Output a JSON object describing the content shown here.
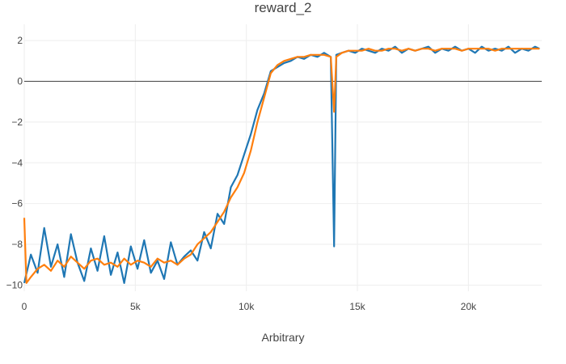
{
  "chart_data": {
    "type": "line",
    "title": "reward_2",
    "xlabel": "Arbitrary",
    "ylabel": "",
    "xlim": [
      0,
      23300
    ],
    "ylim": [
      -10.3,
      2.8
    ],
    "x_ticks": [
      {
        "value": 0,
        "label": "0"
      },
      {
        "value": 5000,
        "label": "5k"
      },
      {
        "value": 10000,
        "label": "10k"
      },
      {
        "value": 15000,
        "label": "15k"
      },
      {
        "value": 20000,
        "label": "20k"
      }
    ],
    "y_ticks": [
      {
        "value": 2,
        "label": "2"
      },
      {
        "value": 0,
        "label": "0"
      },
      {
        "value": -2,
        "label": "−2"
      },
      {
        "value": -4,
        "label": "−4"
      },
      {
        "value": -6,
        "label": "−6"
      },
      {
        "value": -8,
        "label": "−8"
      },
      {
        "value": -10,
        "label": "−10"
      }
    ],
    "grid": true,
    "zero_line": true,
    "colors": {
      "raw": "#1f77b4",
      "smoothed": "#ff7f0e",
      "grid": "#eeeeee",
      "zero": "#444444",
      "text": "#444444"
    },
    "series": [
      {
        "color": "#1f77b4",
        "x": [
          0,
          300,
          600,
          900,
          1200,
          1500,
          1800,
          2100,
          2400,
          2700,
          3000,
          3300,
          3600,
          3900,
          4200,
          4500,
          4800,
          5100,
          5400,
          5700,
          6000,
          6300,
          6600,
          6900,
          7200,
          7500,
          7800,
          8100,
          8400,
          8700,
          9000,
          9300,
          9600,
          9900,
          10200,
          10500,
          10800,
          11100,
          11400,
          11700,
          12000,
          12300,
          12600,
          12900,
          13200,
          13500,
          13800,
          13950,
          14050,
          14300,
          14600,
          14900,
          15200,
          15500,
          15800,
          16100,
          16400,
          16700,
          17000,
          17300,
          17600,
          17900,
          18200,
          18500,
          18800,
          19100,
          19400,
          19700,
          20000,
          20300,
          20600,
          20900,
          21200,
          21500,
          21800,
          22100,
          22400,
          22700,
          23000,
          23200
        ],
        "y": [
          -9.9,
          -8.5,
          -9.4,
          -7.2,
          -9.1,
          -8.0,
          -9.6,
          -7.5,
          -8.9,
          -9.8,
          -8.2,
          -9.3,
          -7.6,
          -9.5,
          -8.4,
          -9.9,
          -8.1,
          -9.2,
          -7.8,
          -9.4,
          -8.8,
          -9.7,
          -7.9,
          -9.0,
          -8.6,
          -8.3,
          -8.8,
          -7.4,
          -8.2,
          -6.5,
          -7.0,
          -5.2,
          -4.6,
          -3.6,
          -2.6,
          -1.4,
          -0.6,
          0.5,
          0.7,
          0.9,
          1.0,
          1.2,
          1.1,
          1.3,
          1.2,
          1.4,
          1.2,
          -8.1,
          1.3,
          1.4,
          1.5,
          1.4,
          1.6,
          1.5,
          1.4,
          1.6,
          1.5,
          1.7,
          1.4,
          1.6,
          1.5,
          1.6,
          1.7,
          1.4,
          1.6,
          1.5,
          1.7,
          1.5,
          1.6,
          1.4,
          1.7,
          1.5,
          1.6,
          1.5,
          1.7,
          1.4,
          1.6,
          1.5,
          1.7,
          1.6
        ]
      },
      {
        "color": "#ff7f0e",
        "x": [
          0,
          100,
          300,
          600,
          900,
          1200,
          1500,
          1800,
          2100,
          2400,
          2700,
          3000,
          3300,
          3600,
          3900,
          4200,
          4500,
          4800,
          5100,
          5400,
          5700,
          6000,
          6300,
          6600,
          6900,
          7200,
          7500,
          7800,
          8100,
          8400,
          8700,
          9000,
          9300,
          9600,
          9900,
          10200,
          10500,
          10800,
          11100,
          11400,
          11700,
          12000,
          12300,
          12600,
          12900,
          13200,
          13500,
          13800,
          13950,
          14050,
          14300,
          14600,
          14900,
          15200,
          15500,
          15800,
          16100,
          16400,
          16700,
          17000,
          17300,
          17600,
          17900,
          18200,
          18500,
          18800,
          19100,
          19400,
          19700,
          20000,
          20300,
          20600,
          20900,
          21200,
          21500,
          21800,
          22100,
          22400,
          22700,
          23000,
          23200
        ],
        "y": [
          -6.7,
          -9.9,
          -9.6,
          -9.2,
          -9.0,
          -9.3,
          -8.8,
          -9.1,
          -8.6,
          -8.9,
          -9.2,
          -8.8,
          -8.7,
          -9.0,
          -8.9,
          -9.1,
          -8.7,
          -9.0,
          -8.8,
          -8.9,
          -9.1,
          -8.7,
          -8.9,
          -8.8,
          -9.0,
          -8.7,
          -8.5,
          -8.0,
          -7.7,
          -7.4,
          -6.9,
          -6.4,
          -5.7,
          -5.2,
          -4.5,
          -3.4,
          -2.0,
          -0.8,
          0.4,
          0.8,
          1.0,
          1.1,
          1.2,
          1.2,
          1.3,
          1.3,
          1.3,
          1.2,
          -1.5,
          1.2,
          1.4,
          1.5,
          1.5,
          1.5,
          1.6,
          1.5,
          1.5,
          1.6,
          1.6,
          1.5,
          1.6,
          1.5,
          1.6,
          1.6,
          1.5,
          1.6,
          1.6,
          1.6,
          1.5,
          1.6,
          1.6,
          1.6,
          1.6,
          1.5,
          1.6,
          1.6,
          1.6,
          1.6,
          1.6,
          1.6,
          1.6
        ]
      }
    ]
  }
}
